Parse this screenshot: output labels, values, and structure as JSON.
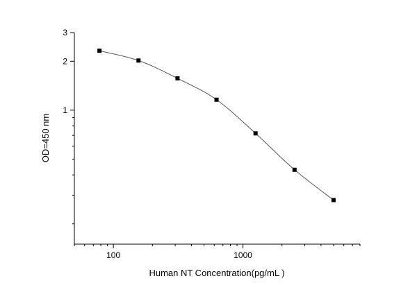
{
  "chart_data": {
    "type": "scatter",
    "title": "",
    "xlabel": "Human NT  Concentration(pg/mL )",
    "ylabel": "OD=450 nm",
    "x_scale": "log",
    "y_scale": "log",
    "xlim": [
      50,
      8000
    ],
    "ylim": [
      0.15,
      3
    ],
    "x_ticks": [
      {
        "value": 100,
        "label": "100"
      },
      {
        "value": 1000,
        "label": "1000"
      }
    ],
    "y_ticks": [
      {
        "value": 1,
        "label": "1"
      },
      {
        "value": 2,
        "label": "2"
      },
      {
        "value": 3,
        "label": "3"
      }
    ],
    "grid": false,
    "legend": "none",
    "series": [
      {
        "marker": "square",
        "line": "smooth fit",
        "color": "#000000",
        "line_color": "#555555",
        "x": [
          78.125,
          156.25,
          312.5,
          625,
          1250,
          2500,
          5000
        ],
        "y": [
          2.32,
          2.02,
          1.57,
          1.16,
          0.72,
          0.43,
          0.28
        ]
      }
    ]
  }
}
